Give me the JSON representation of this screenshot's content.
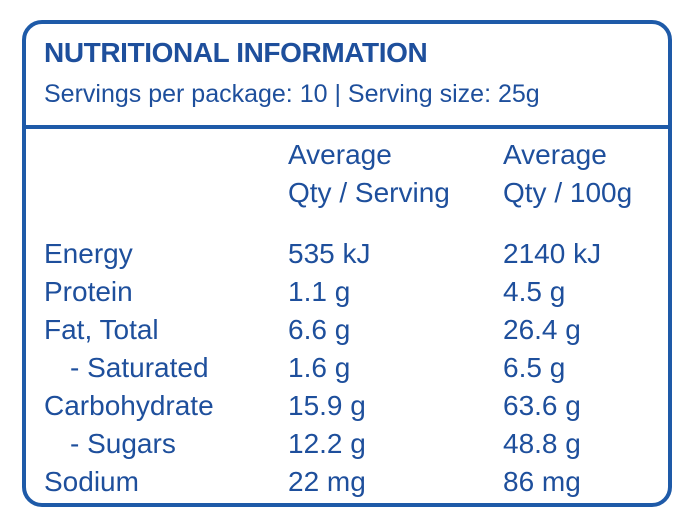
{
  "header": {
    "title": "NUTRITIONAL INFORMATION",
    "subtitle": "Servings per package: 10 | Serving size: 25g"
  },
  "columns": {
    "serving": [
      "Average",
      "Qty / Serving"
    ],
    "per100g": [
      "Average",
      "Qty / 100g"
    ]
  },
  "rows": [
    {
      "name": "Energy",
      "serving": "535 kJ",
      "per100g": "2140 kJ",
      "sub": false
    },
    {
      "name": "Protein",
      "serving": "1.1 g",
      "per100g": "4.5 g",
      "sub": false
    },
    {
      "name": "Fat, Total",
      "serving": "6.6 g",
      "per100g": "26.4 g",
      "sub": false
    },
    {
      "name": "- Saturated",
      "serving": "1.6 g",
      "per100g": "6.5 g",
      "sub": true
    },
    {
      "name": "Carbohydrate",
      "serving": "15.9 g",
      "per100g": "63.6 g",
      "sub": false
    },
    {
      "name": "- Sugars",
      "serving": "12.2 g",
      "per100g": "48.8 g",
      "sub": true
    },
    {
      "name": "Sodium",
      "serving": "22 mg",
      "per100g": "86 mg",
      "sub": false
    }
  ],
  "colors": {
    "text": "#1e4f9c",
    "border": "#1e5aa8"
  }
}
